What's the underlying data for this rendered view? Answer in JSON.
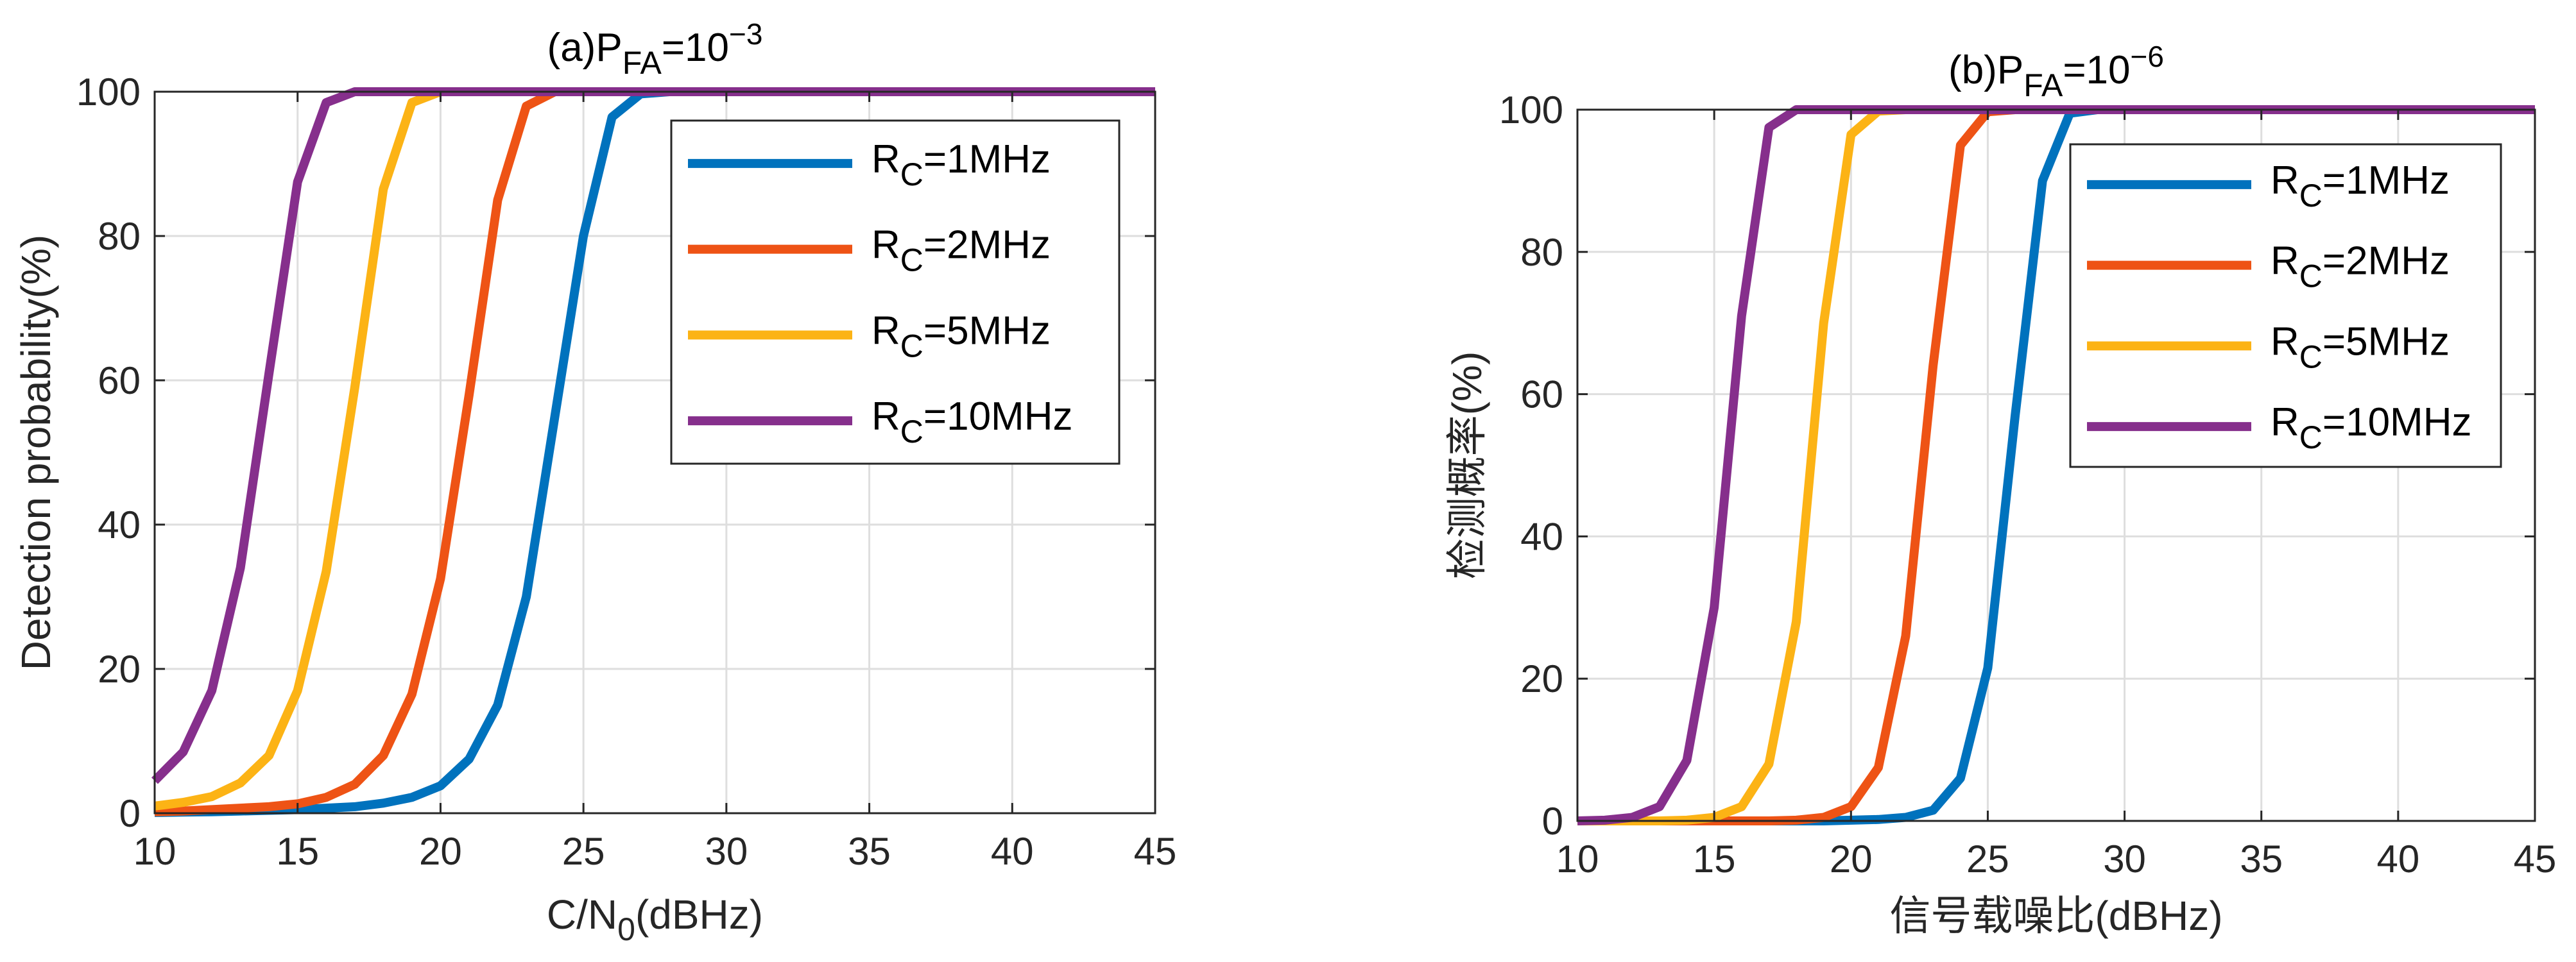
{
  "colors": {
    "series": [
      "#0072BD",
      "#EE5315",
      "#FCB315",
      "#862F8C"
    ],
    "grid": "#dedede",
    "axis": "#262626"
  },
  "chart_data": [
    {
      "type": "line",
      "title": "(a)P",
      "title_sub": "FA",
      "title_mid": "=10",
      "title_sup": "−3",
      "xlabel": "C/N",
      "xlabel_sub": "0",
      "xlabel_tail": "(dBHz)",
      "ylabel": "Detection probability(%)",
      "xlim": [
        10,
        45
      ],
      "ylim": [
        0,
        100
      ],
      "xticks": [
        10,
        15,
        20,
        25,
        30,
        35,
        40,
        45
      ],
      "yticks": [
        0,
        20,
        40,
        60,
        80,
        100
      ],
      "grid": true,
      "legend_position": "top-right",
      "x": [
        10,
        11,
        12,
        13,
        14,
        15,
        16,
        17,
        18,
        19,
        20,
        21,
        22,
        23,
        24,
        25,
        26,
        27,
        28,
        29,
        30,
        31,
        32,
        33,
        34,
        35,
        36,
        37,
        38,
        39,
        40,
        41,
        42,
        43,
        44,
        45
      ],
      "series": [
        {
          "name": "R",
          "name_sub": "C",
          "name_tail": "=1MHz",
          "values": [
            0.1,
            0.15,
            0.2,
            0.3,
            0.4,
            0.5,
            0.7,
            0.9,
            1.4,
            2.2,
            3.8,
            7.5,
            15,
            30,
            55,
            80,
            96.5,
            99.7,
            100,
            100,
            100,
            100,
            100,
            100,
            100,
            100,
            100,
            100,
            100,
            100,
            100,
            100,
            100,
            100,
            100,
            100
          ]
        },
        {
          "name": "R",
          "name_sub": "C",
          "name_tail": "=2MHz",
          "values": [
            0.2,
            0.3,
            0.5,
            0.7,
            0.9,
            1.3,
            2.2,
            4.0,
            8.0,
            16.5,
            32.5,
            58,
            85,
            98,
            100,
            100,
            100,
            100,
            100,
            100,
            100,
            100,
            100,
            100,
            100,
            100,
            100,
            100,
            100,
            100,
            100,
            100,
            100,
            100,
            100,
            100
          ]
        },
        {
          "name": "R",
          "name_sub": "C",
          "name_tail": "=5MHz",
          "values": [
            1.0,
            1.5,
            2.3,
            4.2,
            8.0,
            17,
            33.5,
            59,
            86.5,
            98.5,
            100,
            100,
            100,
            100,
            100,
            100,
            100,
            100,
            100,
            100,
            100,
            100,
            100,
            100,
            100,
            100,
            100,
            100,
            100,
            100,
            100,
            100,
            100,
            100,
            100,
            100
          ]
        },
        {
          "name": "R",
          "name_sub": "C",
          "name_tail": "=10MHz",
          "values": [
            4.5,
            8.5,
            17,
            34,
            61,
            87.5,
            98.5,
            100,
            100,
            100,
            100,
            100,
            100,
            100,
            100,
            100,
            100,
            100,
            100,
            100,
            100,
            100,
            100,
            100,
            100,
            100,
            100,
            100,
            100,
            100,
            100,
            100,
            100,
            100,
            100,
            100
          ]
        }
      ]
    },
    {
      "type": "line",
      "title": "(b)P",
      "title_sub": "FA",
      "title_mid": "=10",
      "title_sup": "−6",
      "xlabel": "信号载噪比(dBHz)",
      "xlabel_sub": "",
      "xlabel_tail": "",
      "ylabel": "检测概率(%)",
      "xlim": [
        10,
        45
      ],
      "ylim": [
        0,
        100
      ],
      "xticks": [
        10,
        15,
        20,
        25,
        30,
        35,
        40,
        45
      ],
      "yticks": [
        0,
        20,
        40,
        60,
        80,
        100
      ],
      "grid": true,
      "legend_position": "top-right",
      "x": [
        10,
        11,
        12,
        13,
        14,
        15,
        16,
        17,
        18,
        19,
        20,
        21,
        22,
        23,
        24,
        25,
        26,
        27,
        28,
        29,
        30,
        31,
        32,
        33,
        34,
        35,
        36,
        37,
        38,
        39,
        40,
        41,
        42,
        43,
        44,
        45
      ],
      "series": [
        {
          "name": "R",
          "name_sub": "C",
          "name_tail": "=1MHz",
          "values": [
            0,
            0,
            0,
            0,
            0,
            0,
            0,
            0,
            0,
            0,
            0.1,
            0.2,
            0.5,
            1.5,
            6,
            21.5,
            57,
            90,
            99.5,
            100,
            100,
            100,
            100,
            100,
            100,
            100,
            100,
            100,
            100,
            100,
            100,
            100,
            100,
            100,
            100,
            100
          ]
        },
        {
          "name": "R",
          "name_sub": "C",
          "name_tail": "=2MHz",
          "values": [
            0,
            0,
            0,
            0,
            0,
            0,
            0,
            0,
            0.1,
            0.5,
            2,
            7.5,
            26,
            64,
            95,
            99.7,
            100,
            100,
            100,
            100,
            100,
            100,
            100,
            100,
            100,
            100,
            100,
            100,
            100,
            100,
            100,
            100,
            100,
            100,
            100,
            100
          ]
        },
        {
          "name": "R",
          "name_sub": "C",
          "name_tail": "=5MHz",
          "values": [
            0,
            0,
            0,
            0,
            0.1,
            0.5,
            2,
            8,
            28,
            70,
            96.5,
            99.8,
            100,
            100,
            100,
            100,
            100,
            100,
            100,
            100,
            100,
            100,
            100,
            100,
            100,
            100,
            100,
            100,
            100,
            100,
            100,
            100,
            100,
            100,
            100,
            100
          ]
        },
        {
          "name": "R",
          "name_sub": "C",
          "name_tail": "=10MHz",
          "values": [
            0,
            0.1,
            0.5,
            2,
            8.5,
            30,
            71,
            97.5,
            100,
            100,
            100,
            100,
            100,
            100,
            100,
            100,
            100,
            100,
            100,
            100,
            100,
            100,
            100,
            100,
            100,
            100,
            100,
            100,
            100,
            100,
            100,
            100,
            100,
            100,
            100,
            100
          ]
        }
      ]
    }
  ]
}
